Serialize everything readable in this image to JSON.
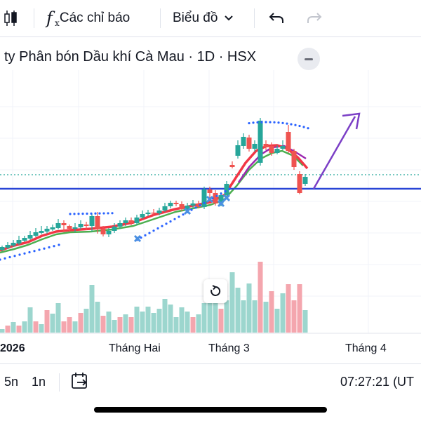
{
  "toolbar": {
    "indicators_label": "Các chỉ báo",
    "chart_type_label": "Biểu đồ",
    "icons": [
      "candles-icon",
      "function-icon",
      "chevron-down-icon",
      "undo-icon",
      "redo-icon"
    ]
  },
  "header": {
    "title": "ty Phân bón Dầu khí Cà Mau · 1D · HSX"
  },
  "colors": {
    "up": "#26a69a",
    "down": "#ef5350",
    "vol_up": "#9cd6ce",
    "vol_down": "#f4a6ae",
    "ma_red": "#f23645",
    "ma_green": "#4caf50",
    "ma_purple": "#9c27b0",
    "sar": "#2962ff",
    "hline": "#2945d6",
    "arrow": "#7b3fc6",
    "grid": "#f0f3fa"
  },
  "chart_data": {
    "type": "candlestick",
    "x_labels": [
      "2026",
      "Tháng Hai",
      "Tháng 3",
      "Tháng 4"
    ],
    "indicators": [
      "moving-average-red",
      "moving-average-green",
      "moving-average-purple",
      "parabolic-sar"
    ],
    "price_trend": "uptrend-breakout",
    "horizontal_line": "support-level",
    "projection_arrow": "up"
  },
  "bottom": {
    "range_5n": "5n",
    "range_1n": "1n",
    "time": "07:27:21 (UT"
  }
}
